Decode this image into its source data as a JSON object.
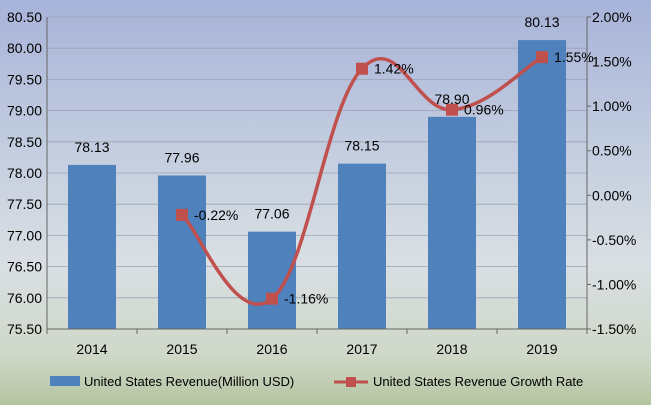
{
  "chart_data": {
    "type": "bar",
    "categories": [
      "2014",
      "2015",
      "2016",
      "2017",
      "2018",
      "2019"
    ],
    "series": [
      {
        "name": "United States Revenue(Million USD)",
        "type": "bar",
        "axis": "left",
        "values": [
          78.13,
          77.96,
          77.06,
          78.15,
          78.9,
          80.13
        ],
        "labels": [
          "78.13",
          "77.96",
          "77.06",
          "78.15",
          "78.90",
          "80.13"
        ],
        "color": "#4f81bd"
      },
      {
        "name": "United States Revenue Growth Rate",
        "type": "line",
        "axis": "right",
        "values": [
          null,
          -0.22,
          -1.16,
          1.42,
          0.96,
          1.55
        ],
        "labels": [
          "",
          "-0.22%",
          "-1.16%",
          "1.42%",
          "0.96%",
          "1.55%"
        ],
        "color": "#c0504d"
      }
    ],
    "y_left": {
      "ylim": [
        75.5,
        80.5
      ],
      "ticks": [
        "80.50",
        "80.00",
        "79.50",
        "79.00",
        "78.50",
        "78.00",
        "77.50",
        "77.00",
        "76.50",
        "76.00",
        "75.50"
      ]
    },
    "y_right": {
      "ylim": [
        -1.5,
        2.0
      ],
      "ticks": [
        "2.00%",
        "1.50%",
        "1.00%",
        "0.50%",
        "0.00%",
        "-0.50%",
        "-1.00%",
        "-1.50%"
      ]
    },
    "grid": "horizontal",
    "legend_position": "bottom"
  }
}
